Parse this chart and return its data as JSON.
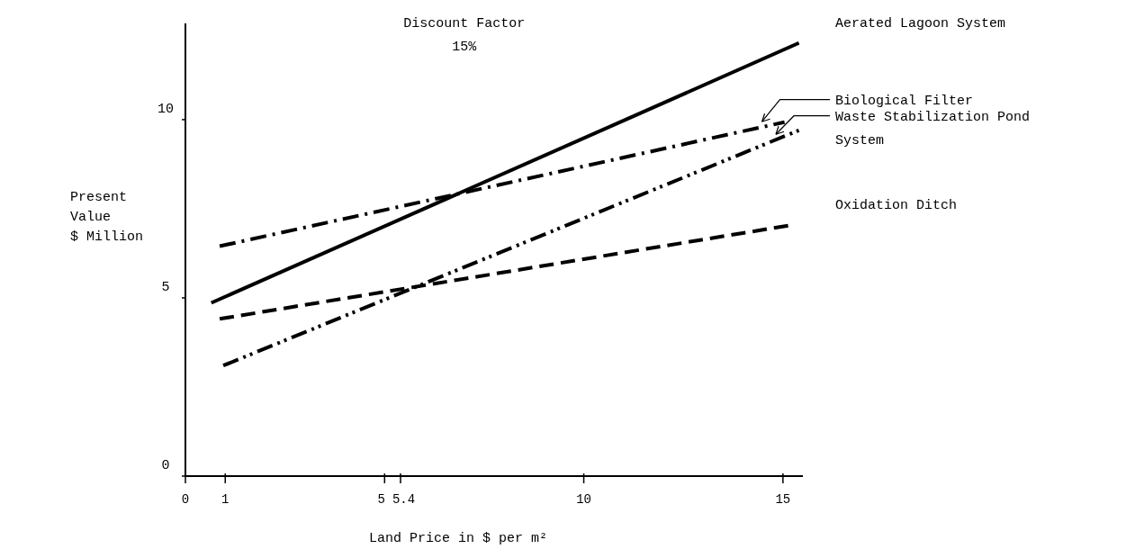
{
  "chart_data": {
    "type": "line",
    "title": "Discount Factor",
    "subtitle": "15%",
    "xlabel": "Land Price in $ per m²",
    "ylabel": "Present Value $ Million",
    "xlim": [
      0,
      15.5
    ],
    "xticks": [
      0,
      1,
      5,
      5.4,
      10,
      15
    ],
    "ylim": [
      0,
      12.7
    ],
    "yticks": [
      0,
      5,
      10
    ],
    "grid": false,
    "legend": false,
    "marker": "none",
    "series": [
      {
        "name": "Aerated Lagoon System",
        "color": "#000000",
        "line_style": "solid",
        "x": [
          0.65,
          15.4
        ],
        "values": [
          4.86,
          12.15
        ]
      },
      {
        "name": "Biological Filter",
        "color": "#000000",
        "line_style": "dashdot",
        "x": [
          0.86,
          15.04
        ],
        "values": [
          6.45,
          9.93
        ]
      },
      {
        "name": "Waste Stabilization Pond System",
        "color": "#000000",
        "line_style": "dashdotdot",
        "x": [
          0.95,
          15.4
        ],
        "values": [
          3.1,
          9.7
        ]
      },
      {
        "name": "Oxidation Ditch",
        "color": "#000000",
        "line_style": "dashed",
        "x": [
          0.86,
          15.2
        ],
        "values": [
          4.41,
          7.04
        ]
      }
    ]
  }
}
